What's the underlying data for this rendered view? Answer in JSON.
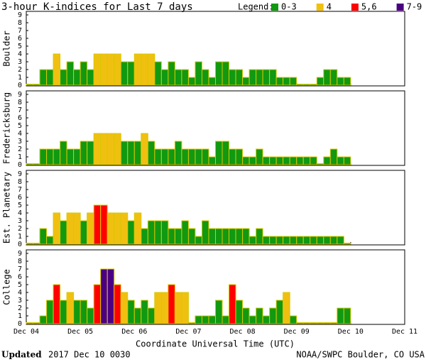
{
  "chart_data": {
    "type": "bar",
    "title": "3-hour K-indices for Last 7 days",
    "legend_title": "Legend:",
    "levels": [
      {
        "label": "0-3",
        "color": "#119911",
        "min": 0,
        "max": 3
      },
      {
        "label": "4",
        "color": "#f0c010",
        "min": 4,
        "max": 4
      },
      {
        "label": "5,6",
        "color": "#ff0000",
        "min": 5,
        "max": 6
      },
      {
        "label": "7-9",
        "color": "#4b0082",
        "min": 7,
        "max": 9
      }
    ],
    "xlabel": "Coordinate Universal Time (UTC)",
    "xlim": [
      0,
      7
    ],
    "xticks": [
      {
        "value": 0,
        "label": "Dec 04"
      },
      {
        "value": 1,
        "label": "Dec 05"
      },
      {
        "value": 2,
        "label": "Dec 06"
      },
      {
        "value": 3,
        "label": "Dec 07"
      },
      {
        "value": 4,
        "label": "Dec 08"
      },
      {
        "value": 5,
        "label": "Dec 09"
      },
      {
        "value": 6,
        "label": "Dec 10"
      },
      {
        "value": 7,
        "label": "Dec 11"
      }
    ],
    "ylim": [
      0,
      9
    ],
    "yticks": [
      0,
      1,
      2,
      3,
      4,
      5,
      6,
      7,
      8,
      9
    ],
    "panels": [
      {
        "name": "Boulder",
        "values": [
          0,
          0,
          2,
          2,
          4,
          2,
          3,
          2,
          3,
          2,
          4,
          4,
          4,
          4,
          3,
          3,
          4,
          4,
          4,
          3,
          2,
          3,
          2,
          2,
          1,
          3,
          2,
          1,
          3,
          3,
          2,
          2,
          1,
          2,
          2,
          2,
          2,
          1,
          1,
          1,
          0,
          0,
          0,
          1,
          2,
          2,
          1,
          1,
          null,
          null,
          null,
          null,
          null,
          null,
          null,
          null
        ]
      },
      {
        "name": "Fredericksburg",
        "values": [
          0,
          0,
          2,
          2,
          2,
          3,
          2,
          2,
          3,
          3,
          4,
          4,
          4,
          4,
          3,
          3,
          3,
          4,
          3,
          2,
          2,
          2,
          3,
          2,
          2,
          2,
          2,
          1,
          3,
          3,
          2,
          2,
          1,
          1,
          2,
          1,
          1,
          1,
          1,
          1,
          1,
          1,
          1,
          0,
          1,
          2,
          1,
          1,
          null,
          null,
          null,
          null,
          null,
          null,
          null,
          null
        ]
      },
      {
        "name": "Est. Planetary",
        "values": [
          0,
          0,
          2,
          1,
          4,
          3,
          4,
          4,
          3,
          4,
          5,
          5,
          4,
          4,
          4,
          3,
          4,
          2,
          3,
          3,
          3,
          2,
          2,
          3,
          2,
          1,
          3,
          2,
          2,
          2,
          2,
          2,
          2,
          1,
          2,
          1,
          1,
          1,
          1,
          1,
          1,
          1,
          1,
          1,
          1,
          1,
          1,
          0,
          null,
          null,
          null,
          null,
          null,
          null,
          null,
          null
        ]
      },
      {
        "name": "College",
        "values": [
          0,
          0,
          1,
          3,
          5,
          3,
          4,
          3,
          3,
          2,
          5,
          7,
          7,
          5,
          4,
          3,
          2,
          3,
          2,
          4,
          4,
          5,
          4,
          4,
          0,
          1,
          1,
          1,
          3,
          1,
          5,
          3,
          2,
          1,
          2,
          1,
          2,
          3,
          4,
          1,
          0,
          0,
          0,
          0,
          0,
          0,
          2,
          2,
          null,
          null,
          null,
          null,
          null,
          null,
          null,
          null
        ]
      }
    ],
    "updated_label": "Updated",
    "updated_value": "2017 Dec 10 0030",
    "source": "NOAA/SWPC Boulder, CO USA"
  }
}
